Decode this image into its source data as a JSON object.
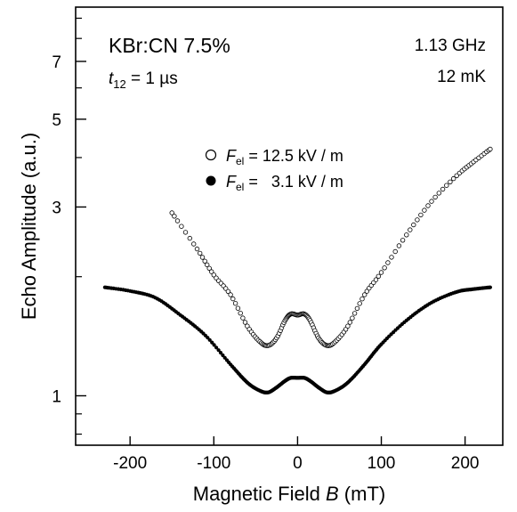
{
  "chart_data": {
    "type": "scatter",
    "title": "",
    "xlabel": "Magnetic Field B (mT)",
    "xlabel_main": "Magnetic Field",
    "xlabel_var": "B",
    "xlabel_unit": "(mT)",
    "ylabel": "Echo Amplitude  (a.u.)",
    "xlim": [
      -265,
      245
    ],
    "ylim_log": [
      0.75,
      9.6
    ],
    "y_scale": "log",
    "grid": false,
    "x_ticks": [
      -200,
      -100,
      0,
      100,
      200
    ],
    "x_tick_labels": [
      "-200",
      "-100",
      "0",
      "100",
      "200"
    ],
    "y_ticks_major": [
      1,
      3,
      5,
      7
    ],
    "y_tick_labels": [
      "1",
      "3",
      "5",
      "7"
    ],
    "y_ticks_minor": [
      0.8,
      0.9,
      2,
      4,
      6,
      8,
      9
    ],
    "annotations": {
      "sample": "KBr:CN 7.5%",
      "time_var": "t",
      "time_sub": "12",
      "time_rest": " = 1 µs",
      "frequency": "1.13 GHz",
      "temperature": "12 mK"
    },
    "legend_position": "center-left",
    "series": [
      {
        "name": "F_el = 12.5 kV / m",
        "legend_var": "F",
        "legend_sub": "el",
        "legend_value": " = 12.5 kV / m",
        "marker": "open-circle",
        "x": [
          -150,
          -120,
          -100,
          -80,
          -60,
          -45,
          -35,
          -25,
          -15,
          -8,
          0,
          8,
          15,
          25,
          35,
          45,
          60,
          80,
          100,
          130,
          160,
          190,
          210,
          230
        ],
        "y": [
          2.9,
          2.35,
          2.02,
          1.8,
          1.5,
          1.37,
          1.34,
          1.4,
          1.55,
          1.61,
          1.6,
          1.61,
          1.55,
          1.4,
          1.34,
          1.37,
          1.5,
          1.8,
          2.05,
          2.55,
          3.1,
          3.6,
          3.9,
          4.2
        ]
      },
      {
        "name": "F_el = 3.1 kV / m",
        "legend_var": "F",
        "legend_sub": "el",
        "legend_value": " =   3.1 kV / m",
        "marker": "filled-circle",
        "x": [
          -230,
          -200,
          -170,
          -140,
          -110,
          -80,
          -60,
          -45,
          -35,
          -25,
          -15,
          -8,
          0,
          8,
          15,
          25,
          35,
          45,
          60,
          80,
          100,
          130,
          160,
          190,
          210,
          230
        ],
        "y": [
          1.88,
          1.84,
          1.77,
          1.6,
          1.42,
          1.2,
          1.08,
          1.03,
          1.02,
          1.05,
          1.09,
          1.11,
          1.11,
          1.11,
          1.09,
          1.05,
          1.02,
          1.03,
          1.08,
          1.2,
          1.35,
          1.55,
          1.72,
          1.83,
          1.86,
          1.88
        ]
      }
    ]
  }
}
